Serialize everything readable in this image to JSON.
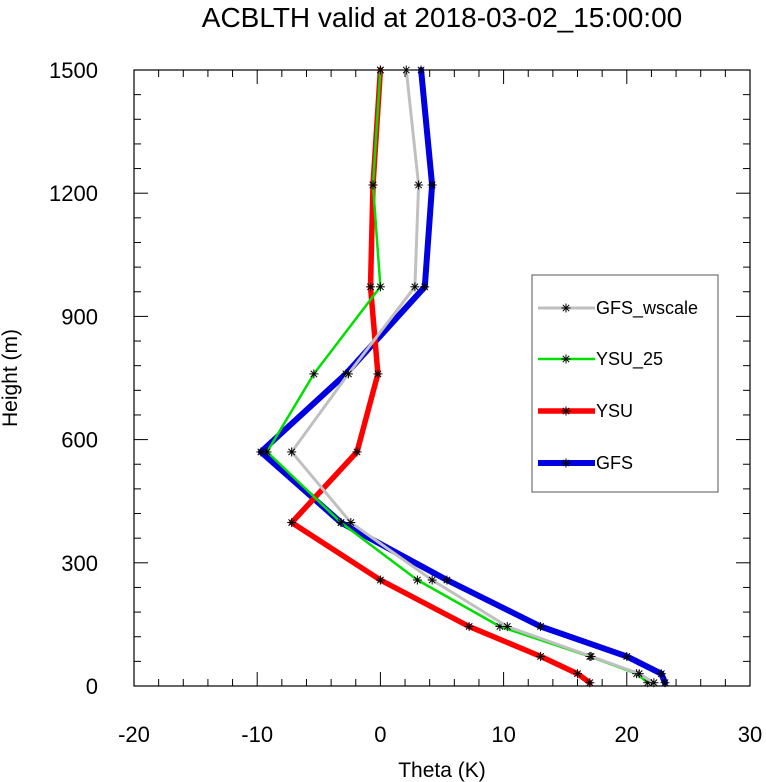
{
  "chart_data": {
    "type": "line",
    "title": "ACBLTH valid at 2018-03-02_15:00:00",
    "xlabel": "Theta (K)",
    "ylabel": "Height (m)",
    "xlim": [
      -20,
      30
    ],
    "ylim": [
      0,
      1500
    ],
    "xticks": [
      -20,
      -10,
      0,
      10,
      20,
      30
    ],
    "yticks": [
      0,
      300,
      600,
      900,
      1200,
      1500
    ],
    "xtick_labels": [
      "-20",
      "-10",
      "0",
      "10",
      "20",
      "30"
    ],
    "ytick_labels": [
      "0",
      "300",
      "600",
      "900",
      "1200",
      "1500"
    ],
    "grid": false,
    "legend_position": "right",
    "series": [
      {
        "name": "GFS_wscale",
        "color": "#c0c0c0",
        "points": [
          [
            22.2,
            8
          ],
          [
            21.0,
            30
          ],
          [
            17.1,
            72
          ],
          [
            10.3,
            145
          ],
          [
            4.2,
            258
          ],
          [
            -2.4,
            398
          ],
          [
            -7.2,
            570
          ],
          [
            -2.6,
            760
          ],
          [
            2.8,
            972
          ],
          [
            3.1,
            1220
          ],
          [
            2.1,
            1500
          ]
        ]
      },
      {
        "name": "YSU_25",
        "color": "#00e000",
        "points": [
          [
            21.7,
            8
          ],
          [
            20.8,
            30
          ],
          [
            17.0,
            72
          ],
          [
            9.7,
            145
          ],
          [
            3.0,
            258
          ],
          [
            -3.2,
            398
          ],
          [
            -9.2,
            570
          ],
          [
            -5.4,
            760
          ],
          [
            0.0,
            972
          ],
          [
            -0.6,
            1220
          ],
          [
            0.0,
            1500
          ]
        ]
      },
      {
        "name": "YSU",
        "color": "#ff0000",
        "points": [
          [
            17.0,
            8
          ],
          [
            16.0,
            30
          ],
          [
            13.0,
            72
          ],
          [
            7.2,
            145
          ],
          [
            0.0,
            258
          ],
          [
            -7.2,
            398
          ],
          [
            -1.9,
            570
          ],
          [
            -0.2,
            760
          ],
          [
            -0.8,
            972
          ],
          [
            -0.6,
            1220
          ],
          [
            0.0,
            1500
          ]
        ]
      },
      {
        "name": "GFS",
        "color": "#0000e0",
        "points": [
          [
            23.1,
            8
          ],
          [
            22.8,
            30
          ],
          [
            20.0,
            72
          ],
          [
            13.0,
            145
          ],
          [
            5.4,
            258
          ],
          [
            -3.2,
            398
          ],
          [
            -9.7,
            570
          ],
          [
            -2.8,
            760
          ],
          [
            3.6,
            972
          ],
          [
            4.2,
            1220
          ],
          [
            3.3,
            1500
          ]
        ]
      }
    ]
  }
}
